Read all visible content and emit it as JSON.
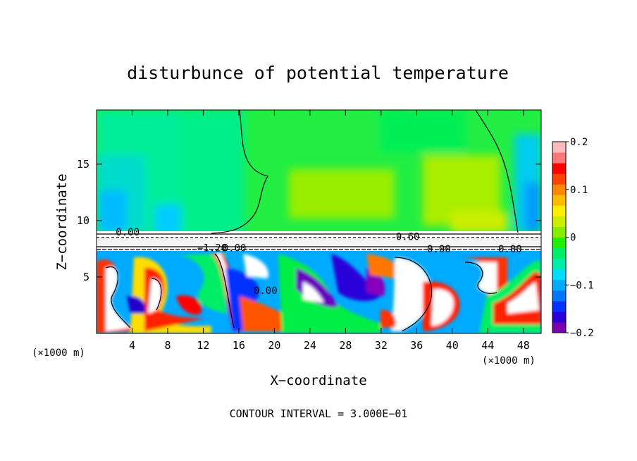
{
  "chart_data": {
    "type": "heatmap",
    "title": "disturbunce of potential temperature",
    "xlabel": "X−coordinate",
    "ylabel": "Z−coordinate",
    "x_unit_left": "(×1000 m)",
    "x_unit_right": "(×1000 m)",
    "xlim": [
      0,
      50
    ],
    "ylim": [
      0,
      19.8
    ],
    "x_ticks": [
      4,
      8,
      12,
      16,
      20,
      24,
      28,
      32,
      36,
      40,
      44,
      48
    ],
    "y_ticks": [
      5,
      10,
      15
    ],
    "colorbar": {
      "range": [
        -0.2,
        0.2
      ],
      "tick_labels": [
        "0.2",
        "0.1",
        "0",
        "−0.1",
        "−0.2"
      ],
      "tick_values": [
        0.2,
        0.1,
        0,
        -0.1,
        -0.2
      ],
      "colors": [
        "#7a00b0",
        "#2a00d8",
        "#0033ff",
        "#0077ff",
        "#00aaff",
        "#00ddff",
        "#00eeaa",
        "#00ee66",
        "#22ee00",
        "#88ee00",
        "#ccee00",
        "#ffee00",
        "#ffbb00",
        "#ff8800",
        "#ff4400",
        "#ff0000",
        "#ff7777",
        "#ffbbbb"
      ]
    },
    "contour_labels": [
      {
        "text": "0.00",
        "x": 3.5,
        "z": 9.0
      },
      {
        "text": "−1.20",
        "x": 13.0,
        "z": 7.6
      },
      {
        "text": "0.00",
        "x": 15.5,
        "z": 7.6
      },
      {
        "text": "0.00",
        "x": 19.0,
        "z": 3.8
      },
      {
        "text": "0.60",
        "x": 35.0,
        "z": 8.6
      },
      {
        "text": "0.00",
        "x": 38.5,
        "z": 7.5
      },
      {
        "text": "0.00",
        "x": 46.5,
        "z": 7.5
      }
    ],
    "footer": "CONTOUR INTERVAL = 3.000E−01"
  }
}
